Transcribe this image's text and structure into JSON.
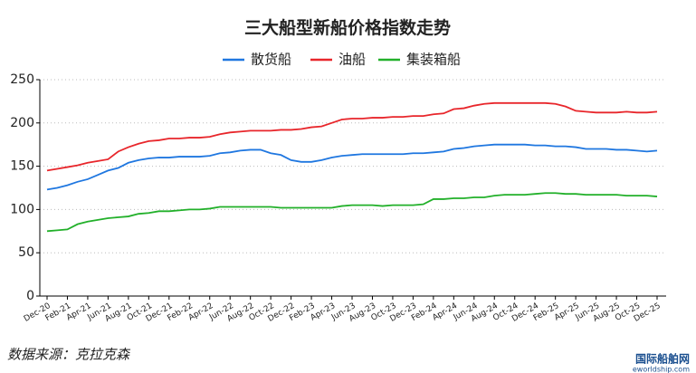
{
  "chart_data": {
    "type": "line",
    "title": "三大船型新船价格指数走势",
    "source": "数据来源：克拉克森",
    "watermark": "国际船舶网",
    "watermark_url": "eworldship.com",
    "categories": [
      "Dec-20",
      null,
      "Feb-21",
      null,
      "Apr-21",
      null,
      "Jun-21",
      null,
      "Aug-21",
      null,
      "Oct-21",
      null,
      "Dec-21",
      null,
      "Feb-22",
      null,
      "Apr-22",
      null,
      "Jun-22",
      null,
      "Aug-22",
      null,
      "Oct-22",
      null,
      "Dec-22",
      null,
      "Feb-23",
      null,
      "Apr-23",
      null,
      "Jun-23",
      null,
      "Aug-23",
      null,
      "Oct-23",
      null,
      "Dec-23",
      null,
      "Feb-24",
      null,
      "Apr-24",
      null,
      "Jun-24",
      null,
      "Aug-24",
      null,
      "Oct-24",
      null,
      "Dec-24",
      null,
      "Feb-25",
      null,
      "Apr-25",
      null,
      "Jun-25",
      null,
      "Aug-25",
      null,
      "Oct-25",
      null,
      "Dec-25"
    ],
    "series": [
      {
        "name": "散货船",
        "color": "#1f77e0",
        "values": [
          123,
          125,
          128,
          132,
          135,
          140,
          145,
          148,
          154,
          157,
          159,
          160,
          160,
          161,
          161,
          161,
          162,
          165,
          166,
          168,
          169,
          169,
          165,
          163,
          157,
          155,
          155,
          157,
          160,
          162,
          163,
          164,
          164,
          164,
          164,
          164,
          165,
          165,
          166,
          167,
          170,
          171,
          173,
          174,
          175,
          175,
          175,
          175,
          174,
          174,
          173,
          173,
          172,
          170,
          170,
          170,
          169,
          169,
          168,
          167,
          168
        ]
      },
      {
        "name": "油船",
        "color": "#e8262b",
        "values": [
          145,
          147,
          149,
          151,
          154,
          156,
          158,
          167,
          172,
          176,
          179,
          180,
          182,
          182,
          183,
          183,
          184,
          187,
          189,
          190,
          191,
          191,
          191,
          192,
          192,
          193,
          195,
          196,
          200,
          204,
          205,
          205,
          206,
          206,
          207,
          207,
          208,
          208,
          210,
          211,
          216,
          217,
          220,
          222,
          223,
          223,
          223,
          223,
          223,
          223,
          222,
          219,
          214,
          213,
          212,
          212,
          212,
          213,
          212,
          212,
          213
        ]
      },
      {
        "name": "集装箱船",
        "color": "#22b02a",
        "values": [
          75,
          76,
          77,
          83,
          86,
          88,
          90,
          91,
          92,
          95,
          96,
          98,
          98,
          99,
          100,
          100,
          101,
          103,
          103,
          103,
          103,
          103,
          103,
          102,
          102,
          102,
          102,
          102,
          102,
          104,
          105,
          105,
          105,
          104,
          105,
          105,
          105,
          106,
          112,
          112,
          113,
          113,
          114,
          114,
          116,
          117,
          117,
          117,
          118,
          119,
          119,
          118,
          118,
          117,
          117,
          117,
          117,
          116,
          116,
          116,
          115
        ]
      }
    ],
    "ylim": [
      0,
      250
    ],
    "yticks": [
      0,
      50,
      100,
      150,
      200,
      250
    ],
    "grid": true
  }
}
